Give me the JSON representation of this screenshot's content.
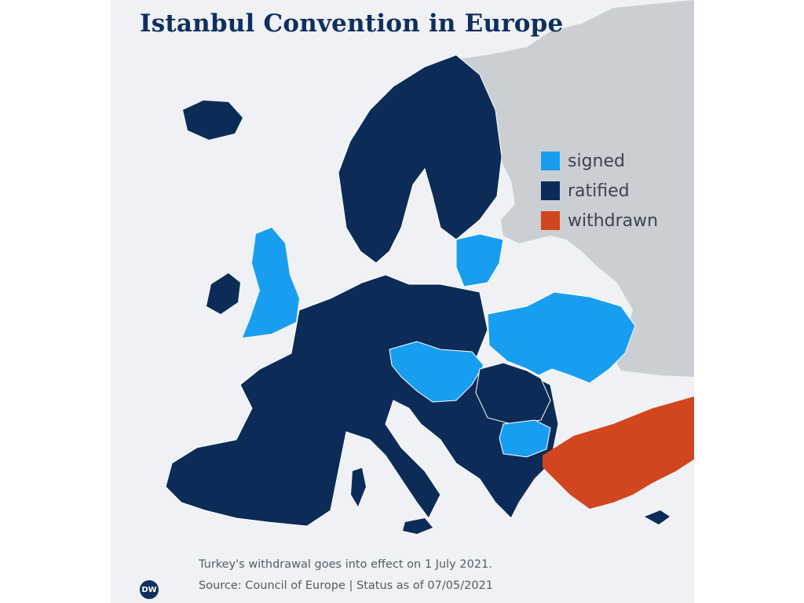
{
  "title": "Istanbul Convention in Europe",
  "legend": [
    {
      "label": "signed",
      "color": "#189ef0"
    },
    {
      "label": "ratified",
      "color": "#0c2c57"
    },
    {
      "label": "withdrawn",
      "color": "#d1461e"
    }
  ],
  "colors": {
    "background": "#eff1f4",
    "non_member": "#cbced3",
    "borders": "#ffffff"
  },
  "footnote": "Turkey's withdrawal goes into effect on 1 July 2021.",
  "source": "Source: Council of Europe | Status as of 07/05/2021",
  "logo_text": "DW"
}
